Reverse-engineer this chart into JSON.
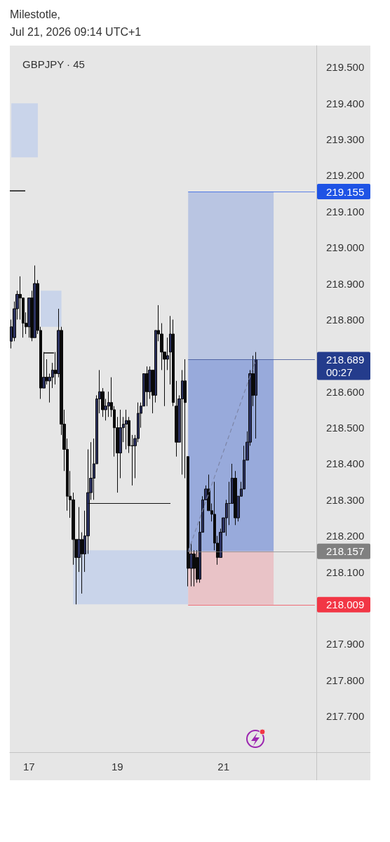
{
  "chart_data": {
    "type": "candlestick",
    "title": "GBPJPY · 45",
    "annotations": [
      "Milestotle,",
      "Jul 21, 2026 09:14 UTC+1"
    ],
    "categories": [
      null,
      null,
      null,
      null,
      null,
      null,
      "17",
      null,
      null,
      null,
      null,
      null,
      null,
      null,
      null,
      null,
      null,
      null,
      null,
      null,
      null,
      null,
      null,
      null,
      null,
      null,
      null,
      null,
      null,
      null,
      null,
      null,
      null,
      null,
      null,
      null,
      "19",
      null,
      null,
      null,
      null,
      null,
      null,
      null,
      null,
      null,
      null,
      null,
      null,
      null,
      null,
      null,
      null,
      null,
      null,
      null,
      null,
      null,
      null,
      null,
      null,
      null,
      null,
      null,
      null,
      null,
      null,
      null,
      null,
      null,
      null,
      null,
      "21",
      null,
      null,
      null,
      null,
      null,
      null,
      null,
      null,
      null,
      null,
      null,
      null,
      null,
      null,
      null,
      null,
      null,
      null,
      null,
      null,
      null,
      null,
      null,
      null,
      null,
      null,
      null,
      null,
      null,
      null,
      null
    ],
    "ohlc": [
      [
        218.74,
        218.8,
        218.72,
        218.78
      ],
      [
        218.75,
        218.85,
        218.74,
        218.83
      ],
      [
        218.83,
        218.88,
        218.8,
        218.87
      ],
      [
        218.87,
        218.92,
        218.8,
        218.86
      ],
      [
        218.86,
        218.86,
        218.75,
        218.79
      ],
      [
        218.79,
        218.82,
        218.76,
        218.78
      ],
      [
        218.78,
        218.86,
        218.75,
        218.86
      ],
      [
        218.86,
        218.88,
        218.74,
        218.75
      ],
      [
        218.75,
        218.95,
        218.75,
        218.9
      ],
      [
        218.9,
        218.91,
        218.76,
        218.77
      ],
      [
        218.77,
        218.78,
        218.58,
        218.61
      ],
      [
        218.61,
        218.71,
        218.61,
        218.64
      ],
      [
        218.64,
        218.69,
        218.62,
        218.63
      ],
      [
        218.63,
        218.65,
        218.57,
        218.64
      ],
      [
        218.64,
        218.68,
        218.61,
        218.66
      ],
      [
        218.66,
        218.71,
        218.62,
        218.65
      ],
      [
        218.65,
        218.83,
        218.64,
        218.77
      ],
      [
        218.77,
        218.78,
        218.48,
        218.51
      ],
      [
        218.51,
        218.55,
        218.38,
        218.44
      ],
      [
        218.44,
        218.47,
        218.27,
        218.31
      ],
      [
        218.31,
        218.38,
        218.25,
        218.3
      ],
      [
        218.3,
        218.32,
        218.12,
        218.19
      ],
      [
        218.19,
        218.19,
        218.01,
        218.14
      ],
      [
        218.14,
        218.28,
        218.1,
        218.19
      ],
      [
        218.19,
        218.21,
        218.04,
        218.15
      ],
      [
        218.15,
        218.27,
        218.1,
        218.2
      ],
      [
        218.2,
        218.44,
        218.15,
        218.32
      ],
      [
        218.32,
        218.46,
        218.3,
        218.36
      ],
      [
        218.36,
        218.47,
        218.3,
        218.4
      ],
      [
        218.4,
        218.59,
        218.4,
        218.58
      ],
      [
        218.58,
        218.66,
        218.54,
        218.6
      ],
      [
        218.6,
        218.61,
        218.53,
        218.55
      ],
      [
        218.55,
        218.58,
        218.52,
        218.56
      ],
      [
        218.56,
        218.6,
        218.53,
        218.57
      ],
      [
        218.57,
        218.64,
        218.53,
        218.55
      ],
      [
        218.55,
        218.56,
        218.42,
        218.5
      ],
      [
        218.5,
        218.53,
        218.32,
        218.43
      ],
      [
        218.43,
        218.55,
        218.36,
        218.5
      ],
      [
        218.5,
        218.53,
        218.46,
        218.51
      ],
      [
        218.51,
        218.55,
        218.44,
        218.52
      ],
      [
        218.52,
        218.53,
        218.43,
        218.45
      ],
      [
        218.45,
        218.48,
        218.34,
        218.45
      ],
      [
        218.45,
        218.48,
        218.36,
        218.47
      ],
      [
        218.47,
        218.57,
        218.46,
        218.54
      ],
      [
        218.54,
        218.57,
        218.5,
        218.56
      ],
      [
        218.56,
        218.65,
        218.56,
        218.65
      ],
      [
        218.65,
        218.67,
        218.56,
        218.6
      ],
      [
        218.6,
        218.67,
        218.58,
        218.66
      ],
      [
        218.66,
        218.66,
        218.54,
        218.59
      ],
      [
        218.59,
        218.77,
        218.57,
        218.77
      ],
      [
        218.77,
        218.84,
        218.74,
        218.76
      ],
      [
        218.76,
        218.79,
        218.66,
        218.71
      ],
      [
        218.71,
        218.71,
        218.56,
        218.69
      ],
      [
        218.69,
        218.75,
        218.66,
        218.7
      ],
      [
        218.71,
        218.81,
        218.62,
        218.76
      ],
      [
        218.76,
        218.8,
        218.56,
        218.57
      ],
      [
        218.56,
        218.63,
        218.42,
        218.46
      ],
      [
        218.46,
        218.59,
        218.46,
        218.58
      ],
      [
        218.58,
        218.66,
        218.37,
        218.63
      ],
      [
        218.63,
        218.69,
        218.36,
        218.57
      ],
      [
        218.42,
        218.42,
        218.06,
        218.11
      ],
      [
        218.11,
        218.18,
        218.06,
        218.15
      ],
      [
        218.15,
        218.16,
        218.06,
        218.11
      ],
      [
        218.14,
        218.16,
        218.07,
        218.08
      ],
      [
        218.08,
        218.24,
        218.07,
        218.21
      ],
      [
        218.21,
        218.31,
        218.21,
        218.3
      ],
      [
        218.3,
        218.34,
        218.3,
        218.33
      ],
      [
        218.33,
        218.37,
        218.27,
        218.27
      ],
      [
        218.27,
        218.29,
        218.24,
        218.26
      ],
      [
        218.26,
        218.35,
        218.16,
        218.18
      ],
      [
        218.18,
        218.2,
        218.12,
        218.14
      ],
      [
        218.14,
        218.22,
        218.14,
        218.21
      ],
      [
        218.21,
        218.25,
        218.21,
        218.25
      ],
      [
        218.25,
        218.3,
        218.2,
        218.29
      ],
      [
        218.29,
        218.35,
        218.23,
        218.29
      ],
      [
        218.29,
        218.4,
        218.29,
        218.36
      ],
      [
        218.36,
        218.38,
        218.23,
        218.25
      ],
      [
        218.25,
        218.31,
        218.24,
        218.31
      ],
      [
        218.31,
        218.35,
        218.31,
        218.33
      ],
      [
        218.33,
        218.45,
        218.33,
        218.41
      ],
      [
        218.41,
        218.49,
        218.41,
        218.46
      ],
      [
        218.46,
        218.66,
        218.45,
        218.65
      ],
      [
        218.65,
        218.7,
        218.56,
        218.59
      ],
      [
        218.59,
        218.71,
        218.47,
        218.689
      ],
      null,
      null,
      null,
      null,
      null,
      null,
      null,
      null,
      null,
      null,
      null,
      null,
      null,
      null,
      null,
      null,
      null,
      null,
      null,
      null
    ],
    "color": "#0a0a0a",
    "colors": [
      "#2b3160",
      "#2b3160",
      "#2b3160",
      "#0a0a0a",
      "#0a0a0a",
      "#0a0a0a",
      "#2b3160",
      "#0a0a0a",
      "#2b3160",
      "#0a0a0a",
      "#0a0a0a",
      "#2b3160",
      "#0a0a0a",
      "#2b3160",
      "#2b3160",
      "#0a0a0a",
      "#2b3160",
      "#0a0a0a",
      "#0a0a0a",
      "#0a0a0a",
      "#0a0a0a",
      "#0a0a0a",
      "#0a0a0a",
      "#2b3160",
      "#0a0a0a",
      "#2b3160",
      "#2b3160",
      "#2b3160",
      "#2b3160",
      "#2b3160",
      "#2b3160",
      "#0a0a0a",
      "#2b3160",
      "#2b3160",
      "#0a0a0a",
      "#0a0a0a",
      "#0a0a0a",
      "#2b3160",
      "#2b3160",
      "#2b3160",
      "#0a0a0a",
      "#0a0a0a",
      "#2b3160",
      "#2b3160",
      "#2b3160",
      "#2b3160",
      "#0a0a0a",
      "#2b3160",
      "#0a0a0a",
      "#2b3160",
      "#0a0a0a",
      "#0a0a0a",
      "#0a0a0a",
      "#2b3160",
      "#2b3160",
      "#0a0a0a",
      "#0a0a0a",
      "#2b3160",
      "#2b3160",
      "#0a0a0a",
      "#0a0a0a",
      "#2b3160",
      "#0a0a0a",
      "#0a0a0a",
      "#2b3160",
      "#2b3160",
      "#2b3160",
      "#0a0a0a",
      "#0a0a0a",
      "#0a0a0a",
      "#0a0a0a",
      "#2b3160",
      "#2b3160",
      "#2b3160",
      "#0a0a0a",
      "#2b3160",
      "#0a0a0a",
      "#2b3160",
      "#2b3160",
      "#2b3160",
      "#2b3160",
      "#2b3160",
      "#0a0a0a",
      "#2b3160",
      null,
      null,
      null,
      null,
      null,
      null,
      null,
      null,
      null,
      null,
      null,
      null,
      null,
      null,
      null,
      null,
      null,
      null,
      null,
      null
    ],
    "ylim": [
      217.6,
      219.56
    ],
    "yticks": [
      {
        "value": 219.5,
        "label": "219.500"
      },
      {
        "value": 219.4,
        "label": "219.400"
      },
      {
        "value": 219.3,
        "label": "219.300"
      },
      {
        "value": 219.2,
        "label": "219.200"
      },
      {
        "value": 219.1,
        "label": "219.100"
      },
      {
        "value": 219,
        "label": "219.000"
      },
      {
        "value": 218.9,
        "label": "218.900"
      },
      {
        "value": 218.8,
        "label": "218.800"
      },
      {
        "value": 218.6,
        "label": "218.600"
      },
      {
        "value": 218.5,
        "label": "218.500"
      },
      {
        "value": 218.4,
        "label": "218.400"
      },
      {
        "value": 218.3,
        "label": "218.300"
      },
      {
        "value": 218.2,
        "label": "218.200"
      },
      {
        "value": 218.1,
        "label": "218.100"
      },
      {
        "value": 217.9,
        "label": "217.900"
      },
      {
        "value": 217.8,
        "label": "217.800"
      },
      {
        "value": 217.7,
        "label": "217.700"
      }
    ],
    "bands": [
      {
        "axis": "y",
        "from": 219.25,
        "to": 219.4,
        "color": "#c9d4ea"
      },
      {
        "axis": "y",
        "from": 218.78,
        "to": 218.88,
        "color": "#c9d4ea"
      },
      {
        "axis": "y",
        "from": 218.01,
        "to": 218.16,
        "color": "#c9d4ea"
      },
      {
        "axis": "y",
        "from": 218.689,
        "to": 219.155,
        "color": "#b9c5e2"
      },
      {
        "axis": "y",
        "from": 218.157,
        "to": 218.689,
        "color": "#98aadb"
      },
      {
        "axis": "y",
        "from": 218.009,
        "to": 218.157,
        "color": "#e9c3c7"
      }
    ],
    "ref_lines": [
      {
        "axis": "y",
        "value": 219.155,
        "label": "219.155",
        "color": "#1e53e5"
      },
      {
        "axis": "y",
        "value": 218.689,
        "label": "218.689\n00:27",
        "color": "#243c8c"
      },
      {
        "axis": "y",
        "value": 218.157,
        "label": "218.157",
        "color": "#808080"
      },
      {
        "axis": "y",
        "value": 218.009,
        "label": "218.009",
        "color": "#f23645"
      },
      {
        "axis": "y",
        "value": 218.29,
        "color": "#111111"
      }
    ]
  }
}
